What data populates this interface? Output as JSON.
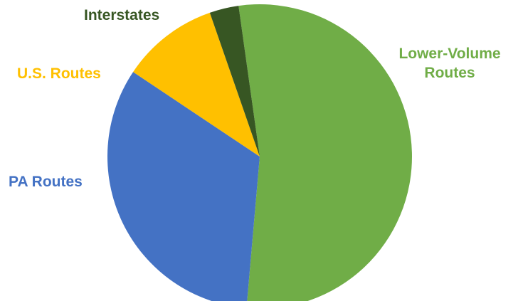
{
  "chart_data": {
    "type": "pie",
    "title": "",
    "start_angle_deg": -8,
    "direction": "clockwise",
    "slices": [
      {
        "name": "Lower-Volume Routes",
        "lines": [
          "Lower-Volume",
          "Routes"
        ],
        "value": 52,
        "color": "#70ad47"
      },
      {
        "name": "PA Routes",
        "lines": [
          "PA Routes"
        ],
        "value": 32,
        "color": "#4472c4"
      },
      {
        "name": "U.S. Routes",
        "lines": [
          "U.S. Routes"
        ],
        "value": 10,
        "color": "#ffc000"
      },
      {
        "name": "Interstates",
        "lines": [
          "Interstates"
        ],
        "value": 3,
        "color": "#375623"
      }
    ]
  },
  "label_colors": {
    "Lower-Volume Routes": "#70ad47",
    "PA Routes": "#4472c4",
    "U.S. Routes": "#ffc000",
    "Interstates": "#375623"
  }
}
